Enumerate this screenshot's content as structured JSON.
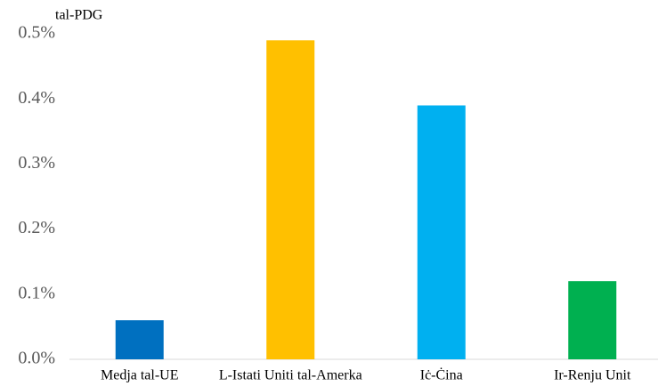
{
  "chart_data": {
    "type": "bar",
    "y_label": "tal-PDG",
    "categories": [
      "Medja tal-UE",
      "L-Istati Uniti tal-Amerka",
      "Iċ-Ċina",
      "Ir-Renju Unit"
    ],
    "values": [
      0.06,
      0.49,
      0.39,
      0.12
    ],
    "colors": [
      "#0070c0",
      "#ffc000",
      "#00b0f0",
      "#00b050"
    ],
    "ylim": [
      0,
      0.5
    ],
    "yticks": [
      {
        "value": 0,
        "label": "0.0%"
      },
      {
        "value": 0.1,
        "label": "0.1%"
      },
      {
        "value": 0.2,
        "label": "0.2%"
      },
      {
        "value": 0.3,
        "label": "0.3%"
      },
      {
        "value": 0.4,
        "label": "0.4%"
      },
      {
        "value": 0.5,
        "label": "0.5%"
      }
    ],
    "grid": false
  }
}
